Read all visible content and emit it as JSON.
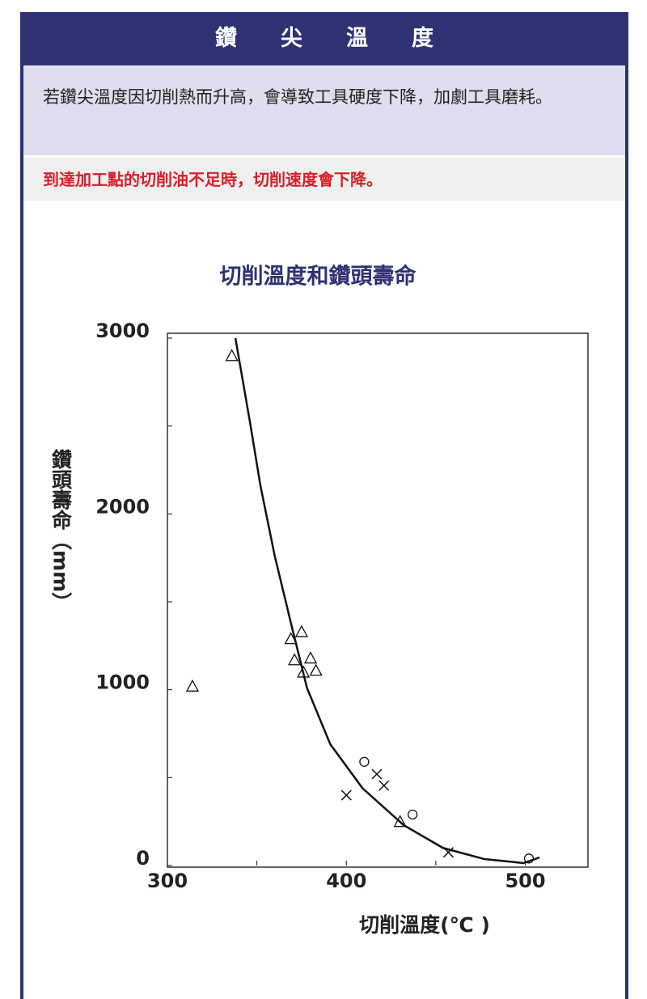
{
  "header": {
    "title": "鑽　　尖　　溫　　度"
  },
  "intro": "若鑽尖溫度因切削熱而升高，會導致工具硬度下降，加劇工具磨耗。",
  "warning": "到達加工點的切削油不足時，切削速度會下降。",
  "chart_data": {
    "type": "scatter",
    "title": "切削溫度和鑽頭壽命",
    "x_label": "切削溫度(℃ )",
    "y_label": "鑽頭壽命（mm）",
    "xlim": [
      300,
      535
    ],
    "ylim": [
      0,
      3000
    ],
    "xticks": [
      300,
      400,
      500
    ],
    "yticks": [
      0,
      1000,
      2000,
      3000
    ],
    "x_minor_ticks": [
      350,
      450
    ],
    "y_minor_ticks": [
      500,
      1500,
      2500
    ],
    "color": "#111111",
    "series": [
      {
        "marker": "triangle",
        "x": [
          336,
          314,
          369,
          375,
          371,
          380,
          376,
          383,
          430
        ],
        "values": [
          2900,
          1020,
          1290,
          1330,
          1170,
          1180,
          1100,
          1110,
          250
        ]
      },
      {
        "marker": "circle",
        "x": [
          410,
          437,
          502
        ],
        "values": [
          590,
          290,
          40
        ]
      },
      {
        "marker": "cross",
        "x": [
          400,
          417,
          421,
          457
        ],
        "values": [
          400,
          520,
          455,
          75
        ]
      },
      {
        "marker": "line",
        "x": [
          338,
          346,
          352,
          360,
          369,
          378,
          391,
          409,
          432,
          454,
          477,
          499,
          508
        ],
        "values": [
          3000,
          2530,
          2160,
          1760,
          1380,
          1010,
          690,
          440,
          230,
          100,
          37,
          14,
          46
        ]
      }
    ]
  }
}
